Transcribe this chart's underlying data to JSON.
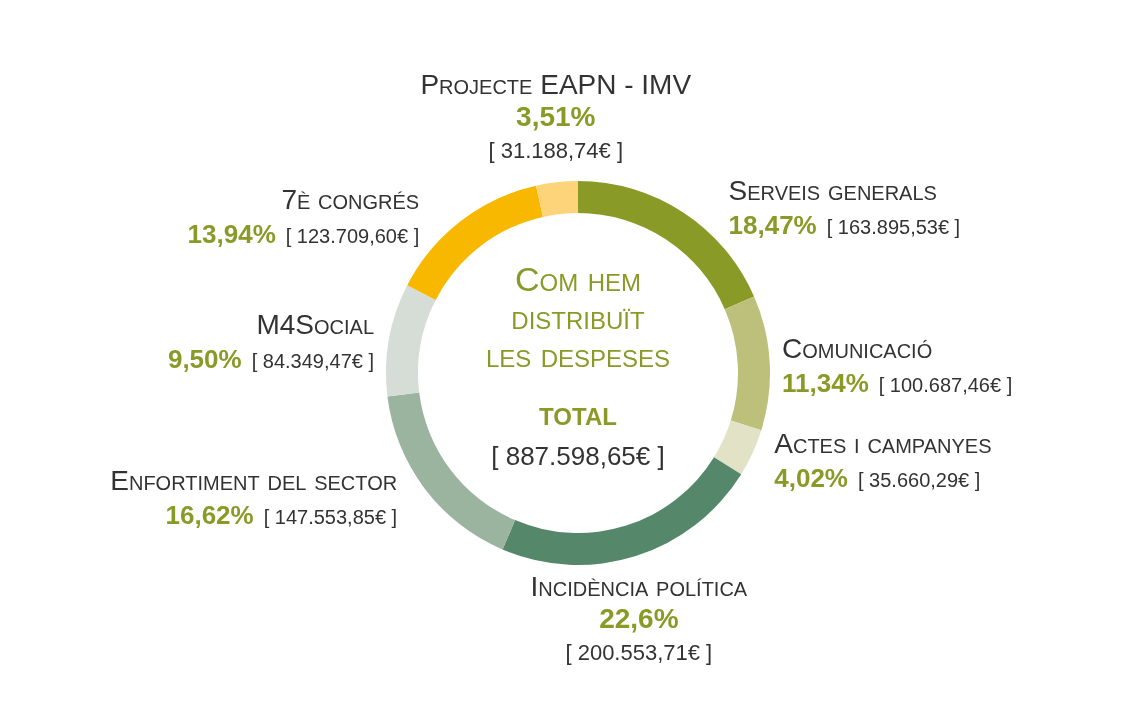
{
  "chart_data": {
    "type": "donut",
    "title": "Com hem distribuït les despeses",
    "subtitle": "TOTAL",
    "categories": [
      "Serveis generals",
      "Comunicació",
      "Actes i campanyes",
      "Incidència política",
      "Enfortiment del sector",
      "M4Social",
      "7è congrés",
      "Projecte EAPN - IMV"
    ],
    "values": [
      18.47,
      11.34,
      4.02,
      22.6,
      16.62,
      9.5,
      13.94,
      3.51
    ],
    "colors": [
      "#8a9a27",
      "#bcc07a",
      "#e2e3c6",
      "#55876a",
      "#9bb4a0",
      "#d6ddd6",
      "#f8b800",
      "#fed47a"
    ],
    "value_labels": [
      "18,47%",
      "11,34%",
      "4,02%",
      "22,6%",
      "16,62%",
      "9,50%",
      "13,94%",
      "3,51%"
    ],
    "annotations": [
      "[ 163.895,53€ ]",
      "[ 100.687,46€ ]",
      "[ 35.660,29€ ]",
      "[ 200.553,71€ ]",
      "[ 147.553,85€ ]",
      "[ 84.349,47€ ]",
      "[ 123.709,60€ ]",
      "[ 31.188,74€ ]",
      "[ 887.598,65€ ]"
    ]
  }
}
